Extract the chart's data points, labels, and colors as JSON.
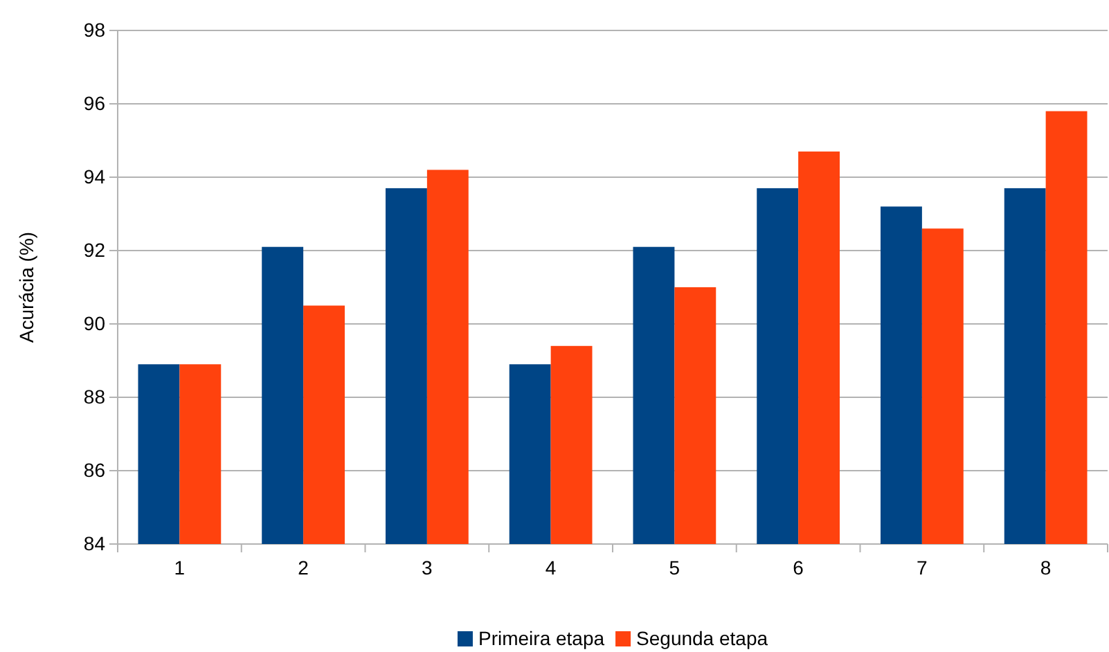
{
  "chart_data": {
    "type": "bar",
    "ylabel": "Acurácia (%)",
    "categories": [
      "1",
      "2",
      "3",
      "4",
      "5",
      "6",
      "7",
      "8"
    ],
    "series": [
      {
        "name": "Primeira etapa",
        "color": "#004586",
        "values": [
          88.9,
          92.1,
          93.7,
          88.9,
          92.1,
          93.7,
          93.2,
          93.7
        ]
      },
      {
        "name": "Segunda etapa",
        "color": "#ff420e",
        "values": [
          88.9,
          90.5,
          94.2,
          89.4,
          91.0,
          94.7,
          92.6,
          95.8
        ]
      }
    ],
    "ylim": [
      84,
      98
    ],
    "yticks": [
      84,
      86,
      88,
      90,
      92,
      94,
      96,
      98
    ],
    "grid": "y",
    "legend": "bottom"
  }
}
